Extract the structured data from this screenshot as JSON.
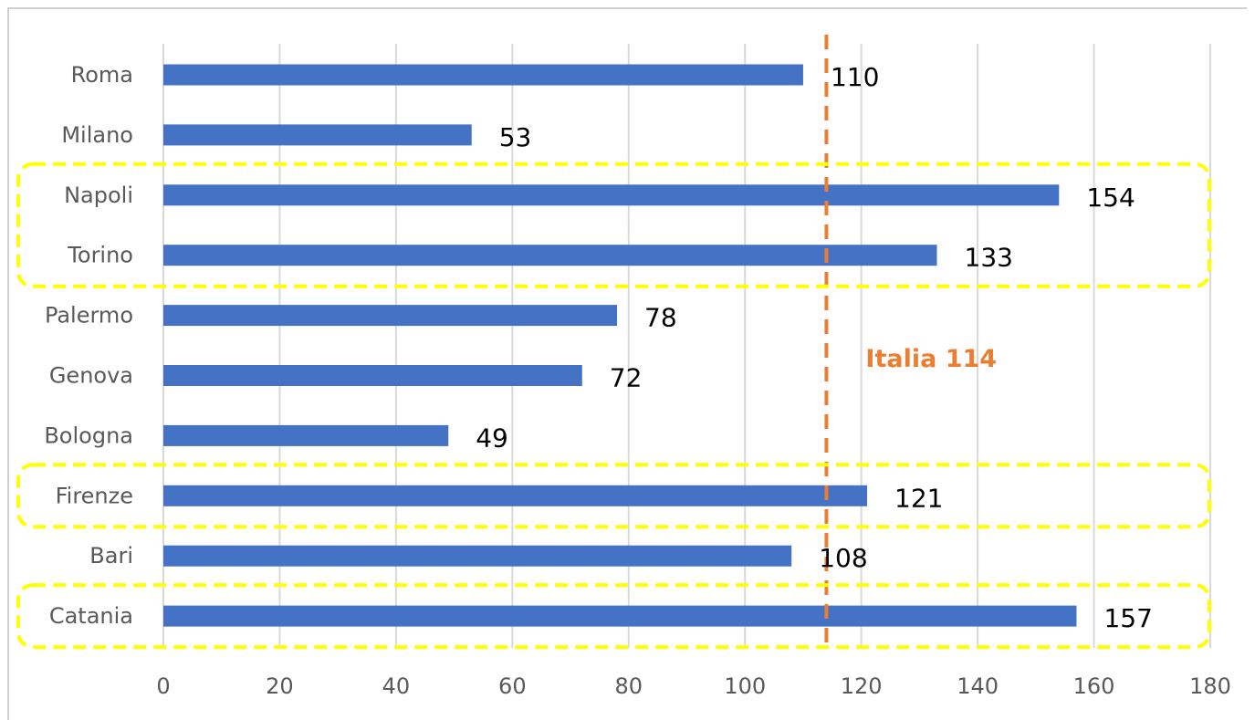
{
  "chart_data": {
    "type": "bar",
    "orientation": "horizontal",
    "title": "",
    "xlabel": "",
    "ylabel": "",
    "categories": [
      "Roma",
      "Milano",
      "Napoli",
      "Torino",
      "Palermo",
      "Genova",
      "Bologna",
      "Firenze",
      "Bari",
      "Catania"
    ],
    "values": [
      110,
      53,
      154,
      133,
      78,
      72,
      49,
      121,
      108,
      157
    ],
    "xlim": [
      0,
      180
    ],
    "xticks": [
      0,
      20,
      40,
      60,
      80,
      100,
      120,
      140,
      160,
      180
    ],
    "grid": true,
    "legend": "none",
    "data_labels": true,
    "reference_line": {
      "label": "Italia 114",
      "value": 114,
      "color": "#ed7d31",
      "style": "dashed"
    },
    "highlighted_groups": [
      [
        "Napoli",
        "Torino"
      ],
      [
        "Firenze"
      ],
      [
        "Catania"
      ]
    ],
    "colors": {
      "bar": "#4472c4",
      "reference": "#ed7d31",
      "highlight": "#ffff00",
      "grid": "#d9d9d9"
    }
  }
}
